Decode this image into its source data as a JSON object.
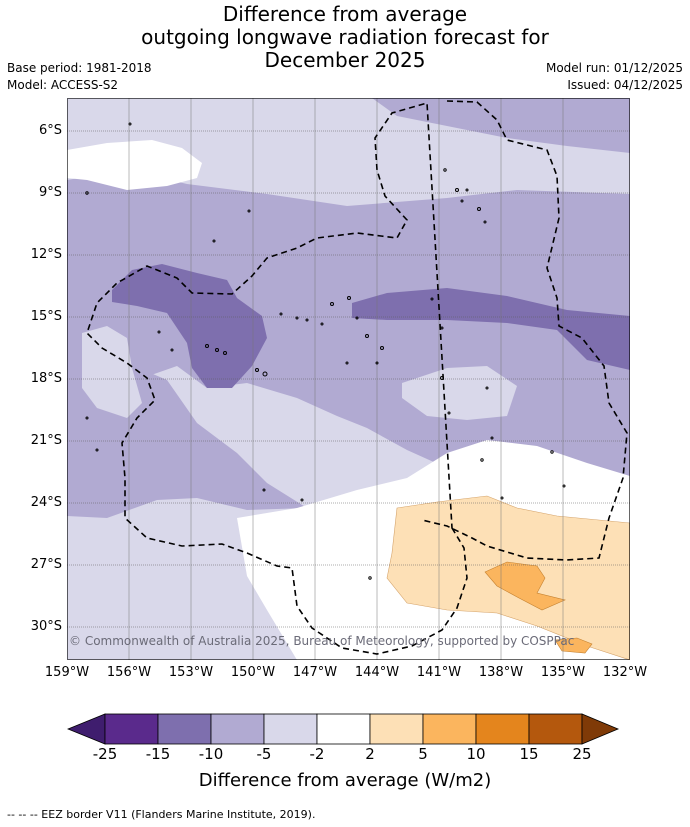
{
  "header": {
    "title_lines": [
      "Difference from average",
      "outgoing longwave radiation forecast for",
      "December 2025"
    ],
    "base_period": "Base period: 1981-2018",
    "model": "Model: ACCESS-S2",
    "model_run": "Model run: 01/12/2025",
    "issued": "Issued: 04/12/2025"
  },
  "map": {
    "lat_labels": [
      "6°S",
      "9°S",
      "12°S",
      "15°S",
      "18°S",
      "21°S",
      "24°S",
      "27°S",
      "30°S"
    ],
    "lon_labels": [
      "159°W",
      "156°W",
      "153°W",
      "150°W",
      "147°W",
      "144°W",
      "141°W",
      "138°W",
      "135°W",
      "132°W"
    ],
    "copyright": "© Commonwealth of Australia 2025, Bureau of Meteorology, supported by COSPPac"
  },
  "colorbar": {
    "labels": [
      "-25",
      "-15",
      "-10",
      "-5",
      "-2",
      "2",
      "5",
      "10",
      "15",
      "25"
    ],
    "colors": [
      "#3f1d6e",
      "#5a2a8c",
      "#7e6fae",
      "#b1aad2",
      "#d9d8ea",
      "#ffffff",
      "#fde0b6",
      "#fbb55e",
      "#e4851d",
      "#b4580d",
      "#7f3a07"
    ],
    "title": "Difference from average (W/m2)"
  },
  "footnote": "-- -- -- EEZ border V11 (Flanders Marine Institute, 2019)."
}
